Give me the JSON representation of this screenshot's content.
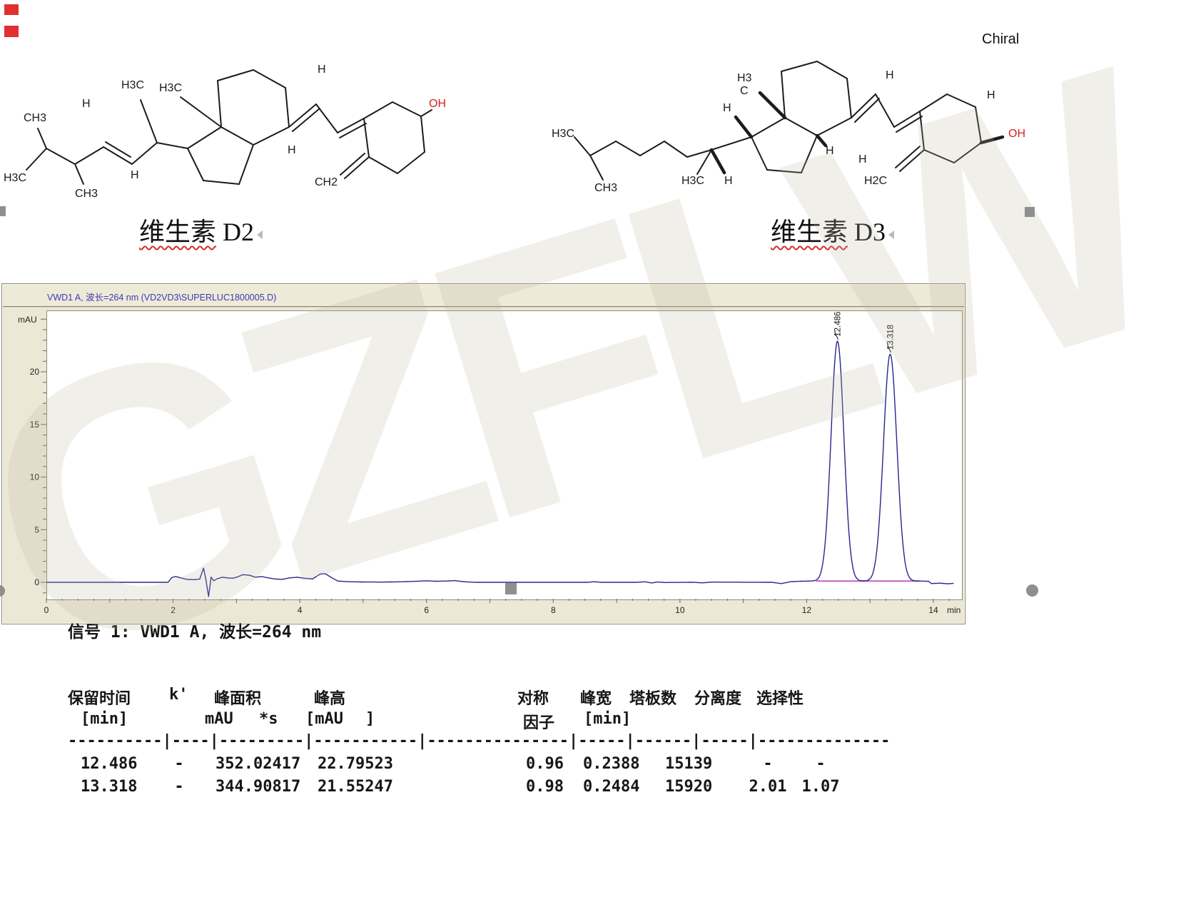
{
  "page": {
    "watermark": "GZFLW"
  },
  "header": {
    "chiral_label": "Chiral",
    "d2_caption": {
      "cjk": "维生素",
      "latin": "D2"
    },
    "d3_caption": {
      "cjk": "维生素",
      "latin": "D3"
    }
  },
  "structures": {
    "d2": {
      "atoms": [
        "CH3",
        "H",
        "H3C",
        "H3C",
        "H3C",
        "CH3",
        "H",
        "H",
        "H",
        "OH",
        "CH2"
      ]
    },
    "d3": {
      "atoms": [
        "H3C",
        "CH3",
        "H3C",
        "H",
        "H3",
        "C",
        "H",
        "H",
        "H",
        "H",
        "H2C",
        "OH",
        "H"
      ]
    }
  },
  "chromatogram": {
    "title": "VWD1 A, 波长=264 nm (VD2VD3\\SUPERLUC1800005.D)",
    "y_axis": {
      "unit": "mAU",
      "ticks": [
        0,
        5,
        10,
        15,
        20
      ]
    },
    "x_axis": {
      "unit": "min",
      "ticks": [
        0,
        2,
        4,
        6,
        8,
        10,
        12,
        14
      ]
    }
  },
  "chart_data": {
    "type": "line",
    "title": "VWD1 A, 波长=264 nm (VD2VD3\\SUPERLUC1800005.D)",
    "xlabel": "min",
    "ylabel": "mAU",
    "xlim": [
      0,
      14.45
    ],
    "ylim": [
      -1.6,
      25.8
    ],
    "x_ticks": [
      0,
      2,
      4,
      6,
      8,
      10,
      12,
      14
    ],
    "y_ticks": [
      0,
      5,
      10,
      15,
      20
    ],
    "grid": false,
    "trace_color": "#26268c",
    "peaks": [
      {
        "label": "12.486",
        "rt": 12.486,
        "height": 22.79523,
        "area": 352.02417,
        "width_half": 0.2388,
        "symmetry": 0.96,
        "plates": 15139
      },
      {
        "label": "13.318",
        "rt": 13.318,
        "height": 21.55247,
        "area": 344.90817,
        "width_half": 0.2484,
        "symmetry": 0.98,
        "plates": 15920,
        "resolution": 2.01,
        "selectivity": 1.07
      }
    ],
    "integration_baseline": {
      "x1": 12.15,
      "x2": 13.78,
      "y": 0.12,
      "color": "#c55fc5"
    },
    "baseline_noise": [
      [
        0,
        0
      ],
      [
        1.92,
        0
      ],
      [
        1.98,
        0.45
      ],
      [
        2.04,
        0.55
      ],
      [
        2.12,
        0.42
      ],
      [
        2.22,
        0.28
      ],
      [
        2.32,
        0.25
      ],
      [
        2.42,
        0.3
      ],
      [
        2.48,
        1.35
      ],
      [
        2.52,
        0.2
      ],
      [
        2.56,
        -1.35
      ],
      [
        2.6,
        0.5
      ],
      [
        2.64,
        0.15
      ],
      [
        2.7,
        0.35
      ],
      [
        2.78,
        0.48
      ],
      [
        2.86,
        0.42
      ],
      [
        2.94,
        0.38
      ],
      [
        3.02,
        0.52
      ],
      [
        3.1,
        0.72
      ],
      [
        3.2,
        0.68
      ],
      [
        3.3,
        0.48
      ],
      [
        3.4,
        0.55
      ],
      [
        3.5,
        0.42
      ],
      [
        3.6,
        0.32
      ],
      [
        3.72,
        0.28
      ],
      [
        3.84,
        0.42
      ],
      [
        3.96,
        0.48
      ],
      [
        4.08,
        0.38
      ],
      [
        4.2,
        0.32
      ],
      [
        4.32,
        0.78
      ],
      [
        4.4,
        0.82
      ],
      [
        4.5,
        0.45
      ],
      [
        4.6,
        0.12
      ],
      [
        4.75,
        0.06
      ],
      [
        5.0,
        0.03
      ],
      [
        5.3,
        0.02
      ],
      [
        5.6,
        0.05
      ],
      [
        5.85,
        0.1
      ],
      [
        6.0,
        0.14
      ],
      [
        6.15,
        0.1
      ],
      [
        6.3,
        0.12
      ],
      [
        6.45,
        0.16
      ],
      [
        6.55,
        0.08
      ],
      [
        6.65,
        0.03
      ],
      [
        6.8,
        0
      ],
      [
        8.55,
        0
      ],
      [
        8.65,
        0.06
      ],
      [
        8.75,
        0
      ],
      [
        9.3,
        0
      ],
      [
        9.45,
        0.05
      ],
      [
        9.55,
        -0.06
      ],
      [
        9.65,
        0.03
      ],
      [
        9.75,
        -0.02
      ],
      [
        10.2,
        0
      ],
      [
        10.35,
        -0.05
      ],
      [
        10.5,
        0.02
      ],
      [
        11.45,
        0
      ],
      [
        11.6,
        -0.12
      ],
      [
        11.75,
        0.06
      ],
      [
        11.9,
        0.1
      ],
      [
        12.05,
        0.12
      ],
      [
        13.8,
        0.12
      ],
      [
        13.92,
        0.1
      ],
      [
        13.97,
        -0.12
      ],
      [
        14.1,
        -0.08
      ],
      [
        14.22,
        -0.14
      ],
      [
        14.32,
        -0.1
      ]
    ]
  },
  "signal_section": {
    "title_line": "信号 1: VWD1 A, 波长=264 nm",
    "table": {
      "header1": [
        "保留时间",
        "k'",
        "峰面积",
        "峰高",
        "对称",
        "峰宽",
        "塔板数",
        "分离度",
        "选择性"
      ],
      "header2": [
        "[min]",
        "mAU",
        "*s",
        "[mAU",
        "]",
        "因子",
        "[min]"
      ],
      "separator": "----------|----|---------|-----------|---------------|-----|------|-----|--------------",
      "rows": [
        [
          "12.486",
          "-",
          "352.02417",
          "22.79523",
          "0.96",
          "0.2388",
          "15139",
          "-",
          "-"
        ],
        [
          "13.318",
          "-",
          "344.90817",
          "21.55247",
          "0.98",
          "0.2484",
          "15920",
          "2.01",
          "1.07"
        ]
      ]
    }
  }
}
